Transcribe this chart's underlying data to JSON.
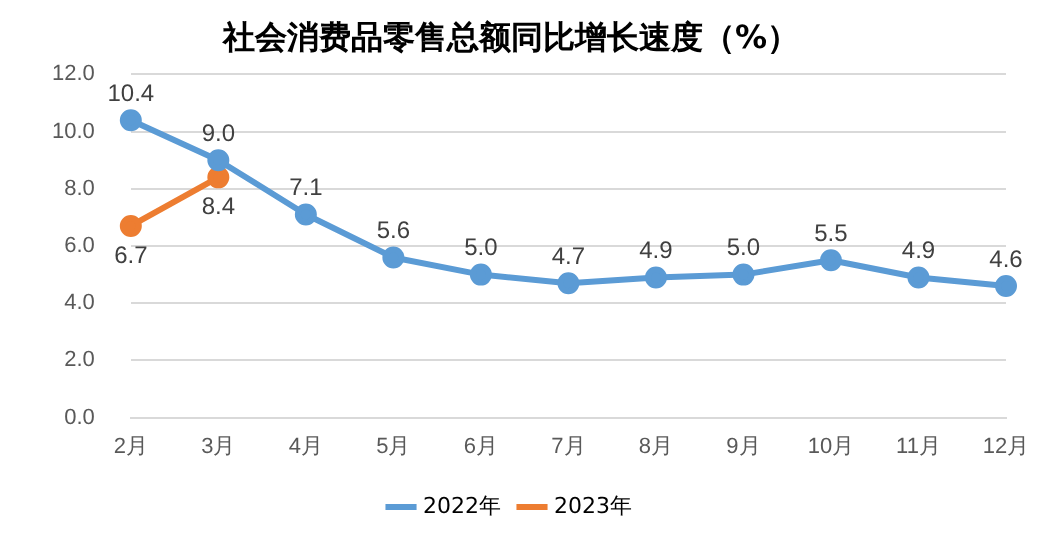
{
  "chart_data": {
    "type": "line",
    "title": "社会消费品零售总额同比增长速度（%）",
    "categories": [
      "2月",
      "3月",
      "4月",
      "5月",
      "6月",
      "7月",
      "8月",
      "9月",
      "10月",
      "11月",
      "12月"
    ],
    "series": [
      {
        "name": "2022年",
        "color": "#5b9bd5",
        "values": [
          10.4,
          9.0,
          7.1,
          5.6,
          5.0,
          4.7,
          4.9,
          5.0,
          5.5,
          4.9,
          4.6
        ],
        "value_labels": [
          "10.4",
          "9.0",
          "7.1",
          "5.6",
          "5.0",
          "4.7",
          "4.9",
          "5.0",
          "5.5",
          "4.9",
          "4.6"
        ]
      },
      {
        "name": "2023年",
        "color": "#ed7d31",
        "values": [
          6.7,
          8.4,
          null,
          null,
          null,
          null,
          null,
          null,
          null,
          null,
          null
        ],
        "value_labels": [
          "6.7",
          "8.4",
          null,
          null,
          null,
          null,
          null,
          null,
          null,
          null,
          null
        ]
      }
    ],
    "ylim": [
      0,
      12
    ],
    "yticks": [
      {
        "value": 0,
        "label": "0.0"
      },
      {
        "value": 2,
        "label": "2.0"
      },
      {
        "value": 4,
        "label": "4.0"
      },
      {
        "value": 6,
        "label": "6.0"
      },
      {
        "value": 8,
        "label": "8.0"
      },
      {
        "value": 10,
        "label": "10.0"
      },
      {
        "value": 12,
        "label": "12.0"
      }
    ],
    "grid": "y",
    "legend": "bottom",
    "marker": "circle",
    "line_style": "solid"
  }
}
